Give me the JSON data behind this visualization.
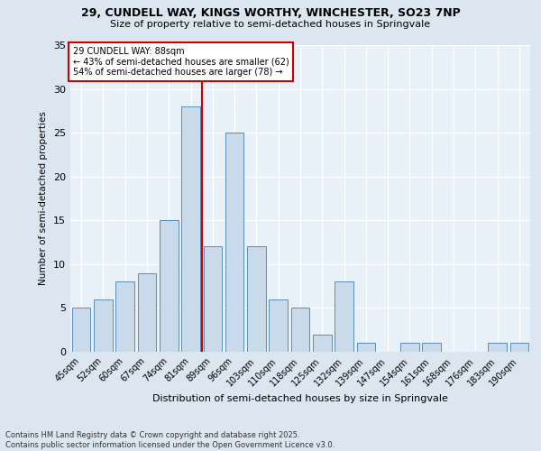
{
  "title1": "29, CUNDELL WAY, KINGS WORTHY, WINCHESTER, SO23 7NP",
  "title2": "Size of property relative to semi-detached houses in Springvale",
  "xlabel": "Distribution of semi-detached houses by size in Springvale",
  "ylabel": "Number of semi-detached properties",
  "footnote": "Contains HM Land Registry data © Crown copyright and database right 2025.\nContains public sector information licensed under the Open Government Licence v3.0.",
  "bar_labels": [
    "45sqm",
    "52sqm",
    "60sqm",
    "67sqm",
    "74sqm",
    "81sqm",
    "89sqm",
    "96sqm",
    "103sqm",
    "110sqm",
    "118sqm",
    "125sqm",
    "132sqm",
    "139sqm",
    "147sqm",
    "154sqm",
    "161sqm",
    "168sqm",
    "176sqm",
    "183sqm",
    "190sqm"
  ],
  "bar_values": [
    5,
    6,
    8,
    9,
    15,
    28,
    12,
    25,
    12,
    6,
    5,
    2,
    8,
    1,
    0,
    1,
    1,
    0,
    0,
    1,
    1
  ],
  "bar_color": "#c9daea",
  "bar_edge_color": "#5b8db8",
  "vline_color": "#cc0000",
  "vline_index": 6,
  "annotation_title": "29 CUNDELL WAY: 88sqm",
  "annotation_line1": "← 43% of semi-detached houses are smaller (62)",
  "annotation_line2": "54% of semi-detached houses are larger (78) →",
  "annotation_box_color": "#ffffff",
  "annotation_box_edge": "#cc0000",
  "ylim": [
    0,
    35
  ],
  "yticks": [
    0,
    5,
    10,
    15,
    20,
    25,
    30,
    35
  ],
  "bg_color": "#dce6f0",
  "plot_bg_color": "#e8f0f8"
}
